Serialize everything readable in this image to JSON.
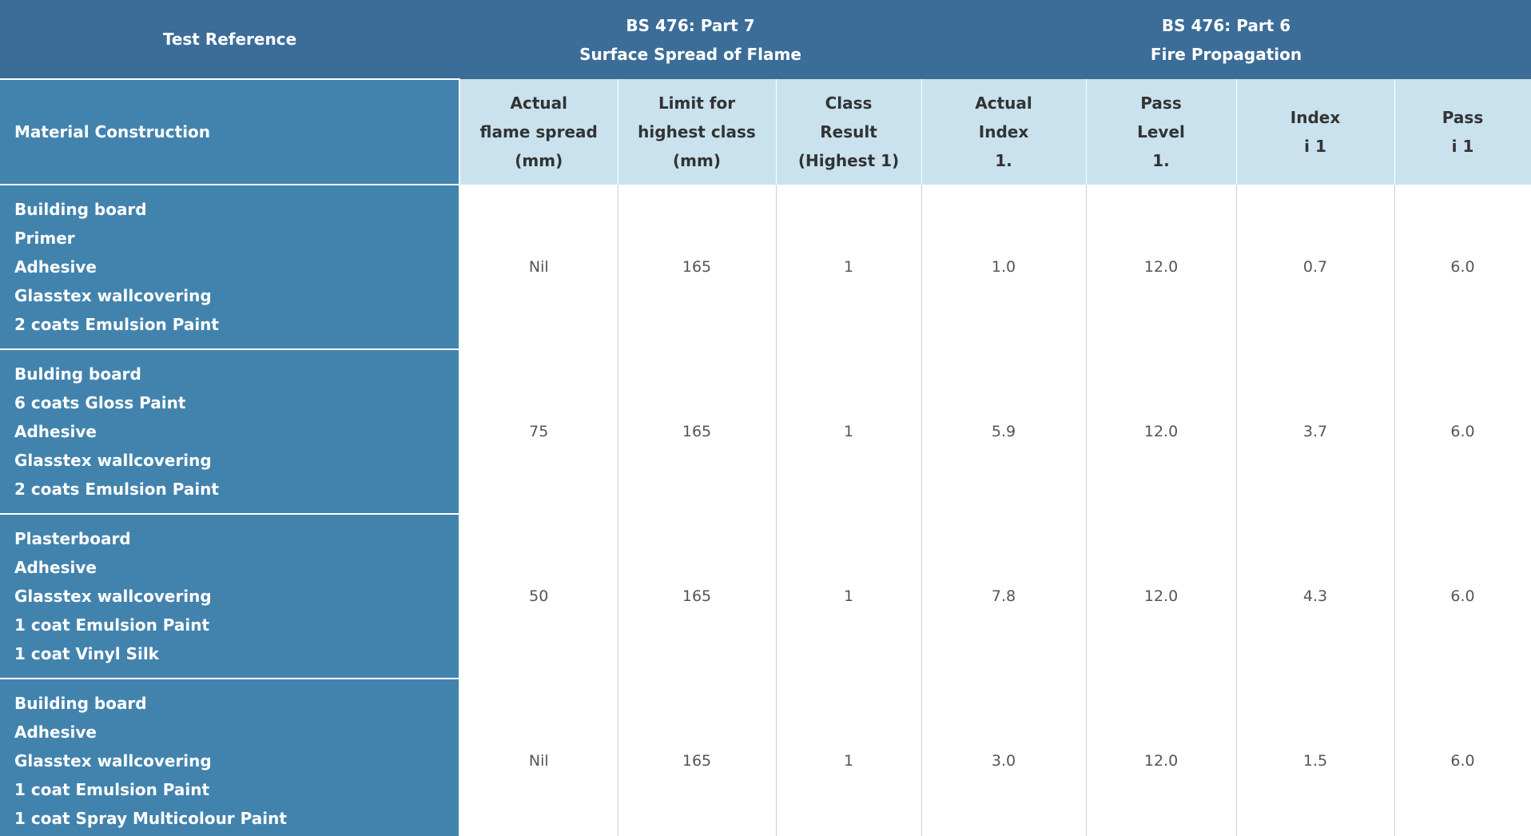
{
  "header": {
    "test_reference": "Test Reference",
    "part7": {
      "line1": "BS 476: Part 7",
      "line2": "Surface Spread of Flame"
    },
    "part6": {
      "line1": "BS 476: Part 6",
      "line2": "Fire Propagation"
    }
  },
  "subheader": {
    "material_construction": "Material Construction",
    "columns": [
      [
        "Actual",
        "flame spread",
        "(mm)"
      ],
      [
        "Limit for",
        "highest class",
        "(mm)"
      ],
      [
        "Class",
        "Result",
        "(Highest 1)"
      ],
      [
        "Actual",
        "Index",
        "1."
      ],
      [
        "Pass",
        "Level",
        "1."
      ],
      [
        "Index",
        "i 1"
      ],
      [
        "Pass",
        "i 1"
      ]
    ]
  },
  "rows": [
    {
      "material": [
        "Building board",
        "Primer",
        "Adhesive",
        "Glasstex wallcovering",
        "2 coats Emulsion Paint"
      ],
      "values": [
        "Nil",
        "165",
        "1",
        "1.0",
        "12.0",
        "0.7",
        "6.0"
      ]
    },
    {
      "material": [
        "Bulding board",
        "6 coats Gloss Paint",
        "Adhesive",
        "Glasstex wallcovering",
        "2 coats Emulsion Paint"
      ],
      "values": [
        "75",
        "165",
        "1",
        "5.9",
        "12.0",
        "3.7",
        "6.0"
      ]
    },
    {
      "material": [
        "Plasterboard",
        "Adhesive",
        "Glasstex wallcovering",
        "1 coat Emulsion Paint",
        "1 coat Vinyl Silk"
      ],
      "values": [
        "50",
        "165",
        "1",
        "7.8",
        "12.0",
        "4.3",
        "6.0"
      ]
    },
    {
      "material": [
        "Building board",
        "Adhesive",
        "Glasstex wallcovering",
        "1 coat Emulsion Paint",
        "1 coat Spray Multicolour Paint"
      ],
      "values": [
        "Nil",
        "165",
        "1",
        "3.0",
        "12.0",
        "1.5",
        "6.0"
      ]
    }
  ]
}
